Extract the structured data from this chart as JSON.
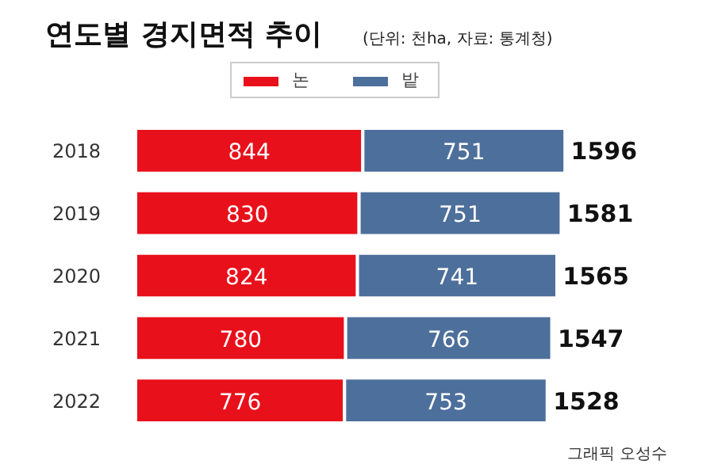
{
  "chart_data": {
    "type": "bar",
    "orientation": "horizontal",
    "stacked": true,
    "title": "연도별 경지면적 추이",
    "subtitle": "(단위: 천ha, 자료: 통계청)",
    "categories": [
      "2018",
      "2019",
      "2020",
      "2021",
      "2022"
    ],
    "series": [
      {
        "name": "논",
        "color": "#e8101a",
        "values": [
          844,
          830,
          824,
          780,
          776
        ]
      },
      {
        "name": "밭",
        "color": "#4d6f9b",
        "values": [
          751,
          751,
          741,
          766,
          753
        ]
      }
    ],
    "data_labels": true,
    "totals": [
      "1596",
      "1581",
      "1565",
      "1547",
      "1528"
    ],
    "legend": "top",
    "annotations": [
      "그래픽 오성수"
    ]
  }
}
